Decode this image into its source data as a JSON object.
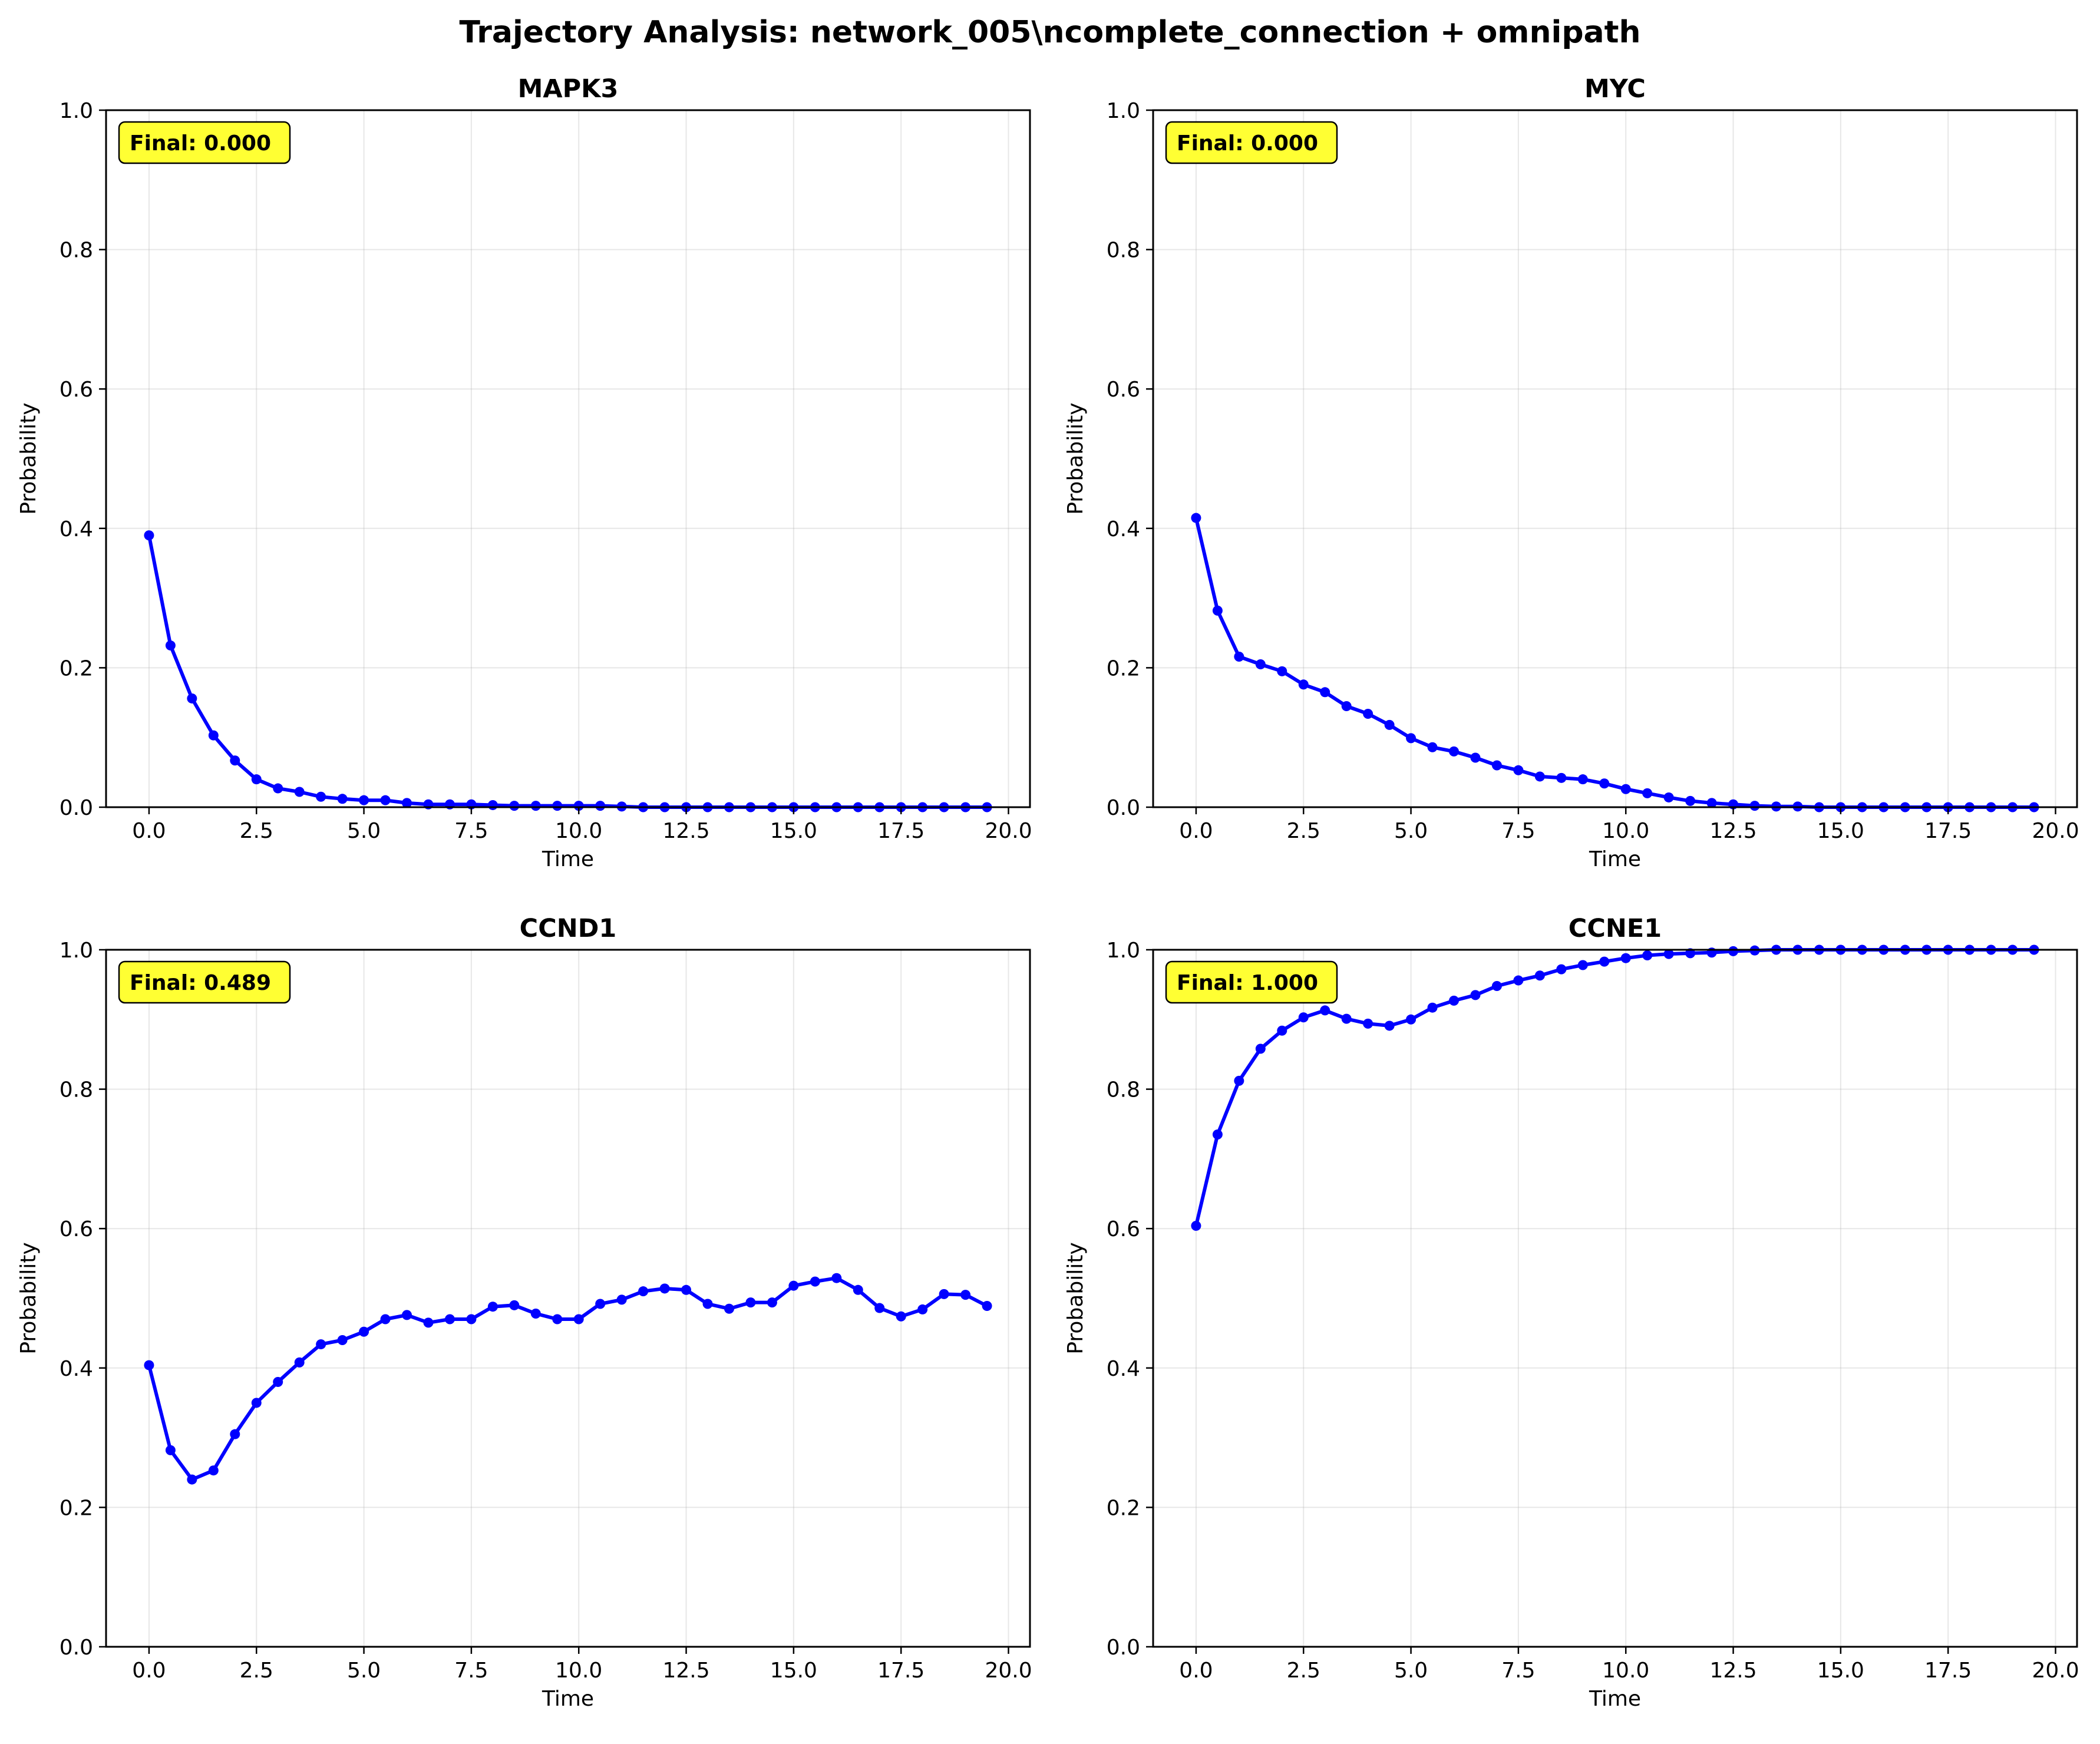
{
  "figure": {
    "title": "Trajectory Analysis: network_005\\ncomplete_connection + omnipath"
  },
  "style": {
    "line_color": "#0000ff",
    "annotation_bg": "#ffff33",
    "grid_color": "#b0b0b0"
  },
  "chart_data": [
    {
      "type": "line",
      "title": "MAPK3",
      "xlabel": "Time",
      "ylabel": "Probability",
      "xlim": [
        -1.0,
        20.5
      ],
      "ylim": [
        0,
        1
      ],
      "xticks": [
        0.0,
        2.5,
        5.0,
        7.5,
        10.0,
        12.5,
        15.0,
        17.5,
        20.0
      ],
      "xtick_labels": [
        "0.0",
        "2.5",
        "5.0",
        "7.5",
        "10.0",
        "12.5",
        "15.0",
        "17.5",
        "20.0"
      ],
      "yticks": [
        0.0,
        0.2,
        0.4,
        0.6,
        0.8,
        1.0
      ],
      "ytick_labels": [
        "0.0",
        "0.2",
        "0.4",
        "0.6",
        "0.8",
        "1.0"
      ],
      "grid": true,
      "annotation": "Final: 0.000",
      "series": [
        {
          "x": [
            0.0,
            0.5,
            1.0,
            1.5,
            2.0,
            2.5,
            3.0,
            3.5,
            4.0,
            4.5,
            5.0,
            5.5,
            6.0,
            6.5,
            7.0,
            7.5,
            8.0,
            8.5,
            9.0,
            9.5,
            10.0,
            10.5,
            11.0,
            11.5,
            12.0,
            12.5,
            13.0,
            13.5,
            14.0,
            14.5,
            15.0,
            15.5,
            16.0,
            16.5,
            17.0,
            17.5,
            18.0,
            18.5,
            19.0,
            19.5
          ],
          "y": [
            0.39,
            0.232,
            0.156,
            0.103,
            0.067,
            0.04,
            0.027,
            0.022,
            0.015,
            0.012,
            0.01,
            0.01,
            0.006,
            0.004,
            0.004,
            0.004,
            0.003,
            0.002,
            0.002,
            0.002,
            0.002,
            0.002,
            0.001,
            0.0,
            0.0,
            0.0,
            0.0,
            0.0,
            0.0,
            0.0,
            0.0,
            0.0,
            0.0,
            0.0,
            0.0,
            0.0,
            0.0,
            0.0,
            0.0,
            0.0
          ]
        }
      ]
    },
    {
      "type": "line",
      "title": "MYC",
      "xlabel": "Time",
      "ylabel": "Probability",
      "xlim": [
        -1.0,
        20.5
      ],
      "ylim": [
        0,
        1
      ],
      "xticks": [
        0.0,
        2.5,
        5.0,
        7.5,
        10.0,
        12.5,
        15.0,
        17.5,
        20.0
      ],
      "xtick_labels": [
        "0.0",
        "2.5",
        "5.0",
        "7.5",
        "10.0",
        "12.5",
        "15.0",
        "17.5",
        "20.0"
      ],
      "yticks": [
        0.0,
        0.2,
        0.4,
        0.6,
        0.8,
        1.0
      ],
      "ytick_labels": [
        "0.0",
        "0.2",
        "0.4",
        "0.6",
        "0.8",
        "1.0"
      ],
      "grid": true,
      "annotation": "Final: 0.000",
      "series": [
        {
          "x": [
            0.0,
            0.5,
            1.0,
            1.5,
            2.0,
            2.5,
            3.0,
            3.5,
            4.0,
            4.5,
            5.0,
            5.5,
            6.0,
            6.5,
            7.0,
            7.5,
            8.0,
            8.5,
            9.0,
            9.5,
            10.0,
            10.5,
            11.0,
            11.5,
            12.0,
            12.5,
            13.0,
            13.5,
            14.0,
            14.5,
            15.0,
            15.5,
            16.0,
            16.5,
            17.0,
            17.5,
            18.0,
            18.5,
            19.0,
            19.5
          ],
          "y": [
            0.415,
            0.282,
            0.216,
            0.205,
            0.195,
            0.176,
            0.165,
            0.145,
            0.134,
            0.118,
            0.099,
            0.086,
            0.08,
            0.071,
            0.06,
            0.053,
            0.044,
            0.042,
            0.04,
            0.034,
            0.026,
            0.02,
            0.014,
            0.009,
            0.006,
            0.004,
            0.002,
            0.001,
            0.001,
            0.0,
            0.0,
            0.0,
            0.0,
            0.0,
            0.0,
            0.0,
            0.0,
            0.0,
            0.0,
            0.0
          ]
        }
      ]
    },
    {
      "type": "line",
      "title": "CCND1",
      "xlabel": "Time",
      "ylabel": "Probability",
      "xlim": [
        -1.0,
        20.5
      ],
      "ylim": [
        0,
        1
      ],
      "xticks": [
        0.0,
        2.5,
        5.0,
        7.5,
        10.0,
        12.5,
        15.0,
        17.5,
        20.0
      ],
      "xtick_labels": [
        "0.0",
        "2.5",
        "5.0",
        "7.5",
        "10.0",
        "12.5",
        "15.0",
        "17.5",
        "20.0"
      ],
      "yticks": [
        0.0,
        0.2,
        0.4,
        0.6,
        0.8,
        1.0
      ],
      "ytick_labels": [
        "0.0",
        "0.2",
        "0.4",
        "0.6",
        "0.8",
        "1.0"
      ],
      "grid": true,
      "annotation": "Final: 0.489",
      "series": [
        {
          "x": [
            0.0,
            0.5,
            1.0,
            1.5,
            2.0,
            2.5,
            3.0,
            3.5,
            4.0,
            4.5,
            5.0,
            5.5,
            6.0,
            6.5,
            7.0,
            7.5,
            8.0,
            8.5,
            9.0,
            9.5,
            10.0,
            10.5,
            11.0,
            11.5,
            12.0,
            12.5,
            13.0,
            13.5,
            14.0,
            14.5,
            15.0,
            15.5,
            16.0,
            16.5,
            17.0,
            17.5,
            18.0,
            18.5,
            19.0,
            19.5
          ],
          "y": [
            0.404,
            0.282,
            0.24,
            0.253,
            0.305,
            0.35,
            0.38,
            0.408,
            0.434,
            0.44,
            0.452,
            0.47,
            0.476,
            0.465,
            0.47,
            0.47,
            0.488,
            0.49,
            0.478,
            0.47,
            0.47,
            0.492,
            0.498,
            0.51,
            0.514,
            0.512,
            0.492,
            0.485,
            0.494,
            0.494,
            0.518,
            0.524,
            0.529,
            0.512,
            0.486,
            0.474,
            0.484,
            0.506,
            0.505,
            0.489
          ]
        }
      ]
    },
    {
      "type": "line",
      "title": "CCNE1",
      "xlabel": "Time",
      "ylabel": "Probability",
      "xlim": [
        -1.0,
        20.5
      ],
      "ylim": [
        0,
        1
      ],
      "xticks": [
        0.0,
        2.5,
        5.0,
        7.5,
        10.0,
        12.5,
        15.0,
        17.5,
        20.0
      ],
      "xtick_labels": [
        "0.0",
        "2.5",
        "5.0",
        "7.5",
        "10.0",
        "12.5",
        "15.0",
        "17.5",
        "20.0"
      ],
      "yticks": [
        0.0,
        0.2,
        0.4,
        0.6,
        0.8,
        1.0
      ],
      "ytick_labels": [
        "0.0",
        "0.2",
        "0.4",
        "0.6",
        "0.8",
        "1.0"
      ],
      "grid": true,
      "annotation": "Final: 1.000",
      "series": [
        {
          "x": [
            0.0,
            0.5,
            1.0,
            1.5,
            2.0,
            2.5,
            3.0,
            3.5,
            4.0,
            4.5,
            5.0,
            5.5,
            6.0,
            6.5,
            7.0,
            7.5,
            8.0,
            8.5,
            9.0,
            9.5,
            10.0,
            10.5,
            11.0,
            11.5,
            12.0,
            12.5,
            13.0,
            13.5,
            14.0,
            14.5,
            15.0,
            15.5,
            16.0,
            16.5,
            17.0,
            17.5,
            18.0,
            18.5,
            19.0,
            19.5
          ],
          "y": [
            0.604,
            0.735,
            0.812,
            0.858,
            0.884,
            0.903,
            0.913,
            0.901,
            0.894,
            0.891,
            0.9,
            0.917,
            0.927,
            0.935,
            0.948,
            0.956,
            0.963,
            0.972,
            0.978,
            0.983,
            0.988,
            0.992,
            0.994,
            0.995,
            0.996,
            0.998,
            0.999,
            1.0,
            1.0,
            1.0,
            1.0,
            1.0,
            1.0,
            1.0,
            1.0,
            1.0,
            1.0,
            1.0,
            1.0,
            1.0
          ]
        }
      ]
    }
  ]
}
